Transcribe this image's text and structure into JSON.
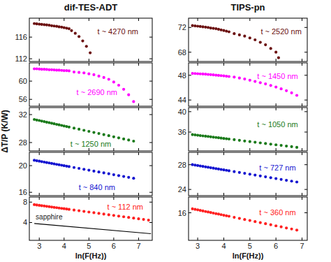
{
  "chart_data": [
    {
      "type": "scatter",
      "title": "dif-TES-ADT",
      "annotation": "t ~ 4270 nm",
      "xlim": [
        2.6,
        7.55
      ],
      "xticks": [
        3,
        4,
        5,
        6,
        7
      ],
      "ylim": [
        111.5,
        119.5
      ],
      "yticks": [
        112,
        116
      ],
      "tick_labels": "y",
      "series": [
        {
          "type": "scatter",
          "color": "#6b1010",
          "marker": "circle",
          "x": [
            2.8,
            2.9,
            3.0,
            3.1,
            3.2,
            3.3,
            3.4,
            3.5,
            3.6,
            3.7,
            3.8,
            3.9,
            4.0,
            4.1,
            4.2,
            4.3,
            4.45,
            4.6,
            4.75,
            4.9,
            5.05
          ],
          "values": [
            118.5,
            118.45,
            118.4,
            118.35,
            118.3,
            118.25,
            118.2,
            118.1,
            118.05,
            118.0,
            117.9,
            117.85,
            117.75,
            117.65,
            117.55,
            117.2,
            116.7,
            116.1,
            115.3,
            114.3,
            113.1
          ]
        }
      ]
    },
    {
      "type": "scatter",
      "annotation": "t ~ 2690 nm",
      "xlim": [
        2.6,
        7.55
      ],
      "xticks": [
        3,
        4,
        5,
        6,
        7
      ],
      "ylim": [
        54.5,
        64
      ],
      "yticks": [
        56,
        60
      ],
      "tick_labels": "y",
      "series": [
        {
          "type": "scatter",
          "color": "#ff00ff",
          "marker": "circle",
          "x": [
            2.8,
            2.9,
            3.0,
            3.1,
            3.2,
            3.3,
            3.4,
            3.5,
            3.6,
            3.7,
            3.8,
            3.9,
            4.0,
            4.1,
            4.2,
            4.4,
            4.6,
            4.8,
            5.0,
            5.2,
            5.4,
            5.6,
            5.8,
            6.0,
            6.2,
            6.4,
            6.6,
            6.8
          ],
          "values": [
            62.7,
            62.7,
            62.65,
            62.6,
            62.6,
            62.55,
            62.5,
            62.5,
            62.45,
            62.4,
            62.4,
            62.35,
            62.3,
            62.3,
            62.25,
            62.0,
            61.9,
            61.8,
            61.6,
            61.4,
            61.1,
            60.8,
            60.4,
            59.8,
            59.1,
            58.2,
            57.0,
            55.5
          ]
        }
      ]
    },
    {
      "type": "scatter",
      "annotation": "t ~ 1250 nm",
      "ylabel": "ΔT/P  (K/W)",
      "xlim": [
        2.6,
        7.55
      ],
      "xticks": [
        3,
        4,
        5,
        6,
        7
      ],
      "ylim": [
        26.8,
        33
      ],
      "yticks": [
        28,
        32
      ],
      "tick_labels": "y",
      "series": [
        {
          "type": "scatter",
          "color": "#1a7a1a",
          "marker": "circle",
          "x": [
            2.8,
            2.9,
            3.0,
            3.1,
            3.2,
            3.3,
            3.4,
            3.5,
            3.6,
            3.7,
            3.8,
            3.9,
            4.0,
            4.1,
            4.2,
            4.4,
            4.6,
            4.8,
            5.0,
            5.2,
            5.4,
            5.6,
            5.8,
            6.0,
            6.2,
            6.4,
            6.6,
            6.8
          ],
          "values": [
            31.3,
            31.22,
            31.15,
            31.07,
            30.99,
            30.91,
            30.84,
            30.76,
            30.68,
            30.6,
            30.53,
            30.45,
            30.37,
            30.29,
            30.22,
            30.06,
            29.91,
            29.75,
            29.6,
            29.44,
            29.29,
            29.13,
            28.98,
            28.82,
            28.67,
            28.51,
            28.36,
            28.2
          ]
        }
      ]
    },
    {
      "type": "scatter",
      "annotation": "t ~ 840 nm",
      "xlim": [
        2.6,
        7.55
      ],
      "xticks": [
        3,
        4,
        5,
        6,
        7
      ],
      "ylim": [
        15.5,
        22
      ],
      "yticks": [
        16,
        20
      ],
      "tick_labels": "y",
      "series": [
        {
          "type": "scatter",
          "color": "#1414d0",
          "marker": "circle",
          "x": [
            2.8,
            2.9,
            3.0,
            3.1,
            3.2,
            3.3,
            3.4,
            3.5,
            3.6,
            3.7,
            3.8,
            3.9,
            4.0,
            4.1,
            4.2,
            4.4,
            4.6,
            4.8,
            5.0,
            5.2,
            5.4,
            5.6,
            5.8,
            6.0,
            6.2,
            6.4,
            6.6,
            6.8
          ],
          "values": [
            20.8,
            20.73,
            20.67,
            20.6,
            20.53,
            20.46,
            20.4,
            20.33,
            20.26,
            20.19,
            20.13,
            20.06,
            19.99,
            19.92,
            19.86,
            19.72,
            19.59,
            19.45,
            19.32,
            19.18,
            19.05,
            18.91,
            18.78,
            18.64,
            18.51,
            18.37,
            18.24,
            18.1
          ]
        }
      ]
    },
    {
      "type": "scatter",
      "annotation": "t ~ 112 nm",
      "xlabel": "ln(F(Hz))",
      "xlim": [
        2.6,
        7.55
      ],
      "xticks": [
        3,
        4,
        5,
        6,
        7
      ],
      "ylim": [
        0.5,
        9
      ],
      "yticks": [
        4,
        8
      ],
      "series": [
        {
          "type": "scatter",
          "color": "#ff2020",
          "marker": "circle",
          "x": [
            2.8,
            2.9,
            3.0,
            3.1,
            3.2,
            3.3,
            3.4,
            3.5,
            3.6,
            3.7,
            3.8,
            3.9,
            4.0,
            4.1,
            4.2,
            4.4,
            4.6,
            4.8,
            5.0,
            5.2,
            5.4,
            5.6,
            5.8,
            6.0,
            6.2,
            6.4,
            6.6,
            6.8,
            7.0,
            7.2,
            7.4
          ],
          "values": [
            7.5,
            7.43,
            7.37,
            7.3,
            7.24,
            7.17,
            7.1,
            7.04,
            6.97,
            6.91,
            6.84,
            6.77,
            6.71,
            6.64,
            6.58,
            6.44,
            6.31,
            6.18,
            6.05,
            5.92,
            5.79,
            5.65,
            5.52,
            5.39,
            5.26,
            5.13,
            5.0,
            4.86,
            4.73,
            4.6,
            4.47
          ]
        },
        {
          "type": "line",
          "name": "sapphire",
          "color": "#000000",
          "line_style": "solid",
          "x": [
            2.8,
            7.5
          ],
          "values": [
            3.8,
            1.8
          ]
        }
      ]
    },
    {
      "type": "scatter",
      "title": "TIPS-pn",
      "annotation": "t ~ 2520 nm",
      "xlim": [
        2.65,
        7.2
      ],
      "xticks": [
        3,
        4,
        5,
        6,
        7
      ],
      "ylim": [
        66.5,
        73.5
      ],
      "yticks": [
        68,
        72
      ],
      "tick_labels": "y",
      "series": [
        {
          "type": "scatter",
          "color": "#6b1010",
          "marker": "circle",
          "x": [
            2.8,
            2.9,
            3.0,
            3.1,
            3.2,
            3.3,
            3.4,
            3.5,
            3.6,
            3.7,
            3.8,
            3.9,
            4.0,
            4.1,
            4.2,
            4.4,
            4.6,
            4.8,
            5.0,
            5.2,
            5.4,
            5.6,
            5.8,
            6.0,
            6.1
          ],
          "values": [
            72.3,
            72.25,
            72.2,
            72.15,
            72.1,
            72.05,
            72.0,
            71.9,
            71.85,
            71.8,
            71.7,
            71.6,
            71.5,
            71.4,
            71.3,
            71.0,
            70.8,
            70.6,
            70.3,
            70.0,
            69.6,
            69.2,
            68.6,
            68.0,
            67.1
          ]
        }
      ]
    },
    {
      "type": "scatter",
      "annotation": "t ~ 1450 nm",
      "xlim": [
        2.65,
        7.2
      ],
      "xticks": [
        3,
        4,
        5,
        6,
        7
      ],
      "ylim": [
        43,
        50
      ],
      "yticks": [
        44,
        48
      ],
      "tick_labels": "y",
      "series": [
        {
          "type": "scatter",
          "color": "#ff00ff",
          "marker": "circle",
          "x": [
            2.8,
            2.9,
            3.0,
            3.1,
            3.2,
            3.3,
            3.4,
            3.5,
            3.6,
            3.7,
            3.8,
            3.9,
            4.0,
            4.1,
            4.2,
            4.4,
            4.6,
            4.8,
            5.0,
            5.2,
            5.4,
            5.6,
            5.8,
            6.0,
            6.2,
            6.4,
            6.6,
            6.8
          ],
          "values": [
            48.3,
            48.28,
            48.25,
            48.22,
            48.2,
            48.17,
            48.13,
            48.1,
            48.06,
            48.02,
            47.98,
            47.94,
            47.9,
            47.85,
            47.8,
            47.7,
            47.55,
            47.4,
            47.2,
            47.0,
            46.8,
            46.6,
            46.35,
            46.1,
            45.8,
            45.5,
            45.15,
            44.75
          ]
        }
      ]
    },
    {
      "type": "scatter",
      "annotation": "t ~ 1050 nm",
      "xlim": [
        2.65,
        7.2
      ],
      "xticks": [
        3,
        4,
        5,
        6,
        7
      ],
      "ylim": [
        32.3,
        40.8
      ],
      "yticks": [
        36,
        40
      ],
      "tick_labels": "y",
      "series": [
        {
          "type": "scatter",
          "color": "#1a7a1a",
          "marker": "circle",
          "x": [
            2.8,
            2.9,
            3.0,
            3.1,
            3.2,
            3.3,
            3.4,
            3.5,
            3.6,
            3.7,
            3.8,
            3.9,
            4.0,
            4.1,
            4.2,
            4.4,
            4.6,
            4.8,
            5.0,
            5.2,
            5.4,
            5.6,
            5.8,
            6.0,
            6.2,
            6.4,
            6.6,
            6.8
          ],
          "values": [
            35.5,
            35.44,
            35.38,
            35.31,
            35.25,
            35.19,
            35.13,
            35.06,
            35.0,
            34.94,
            34.88,
            34.81,
            34.75,
            34.69,
            34.63,
            34.5,
            34.38,
            34.25,
            34.13,
            34.0,
            33.88,
            33.75,
            33.63,
            33.5,
            33.38,
            33.25,
            33.13,
            33.0
          ]
        }
      ]
    },
    {
      "type": "scatter",
      "annotation": "t ~ 727 nm",
      "xlim": [
        2.65,
        7.2
      ],
      "xticks": [
        3,
        4,
        5,
        6,
        7
      ],
      "ylim": [
        23,
        30
      ],
      "yticks": [
        24,
        28
      ],
      "tick_labels": "y",
      "series": [
        {
          "type": "scatter",
          "color": "#1414d0",
          "marker": "circle",
          "x": [
            2.8,
            2.9,
            3.0,
            3.1,
            3.2,
            3.3,
            3.4,
            3.5,
            3.6,
            3.7,
            3.8,
            3.9,
            4.0,
            4.1,
            4.2,
            4.4,
            4.6,
            4.8,
            5.0,
            5.2,
            5.4,
            5.6,
            5.8,
            6.0,
            6.2,
            6.4,
            6.6,
            6.8
          ],
          "values": [
            28.0,
            27.93,
            27.86,
            27.79,
            27.72,
            27.65,
            27.58,
            27.51,
            27.44,
            27.37,
            27.3,
            27.23,
            27.16,
            27.09,
            27.02,
            26.88,
            26.74,
            26.6,
            26.46,
            26.32,
            26.18,
            26.04,
            25.9,
            25.76,
            25.62,
            25.48,
            25.34,
            25.2
          ]
        }
      ]
    },
    {
      "type": "scatter",
      "annotation": "t ~ 360 nm",
      "xlabel": "ln(F(Hz))",
      "xlim": [
        2.65,
        7.2
      ],
      "xticks": [
        3,
        4,
        5,
        6,
        7
      ],
      "ylim": [
        12.5,
        18
      ],
      "yticks": [
        16
      ],
      "series": [
        {
          "type": "scatter",
          "color": "#ff2020",
          "marker": "circle",
          "x": [
            2.8,
            2.9,
            3.0,
            3.1,
            3.2,
            3.3,
            3.4,
            3.5,
            3.6,
            3.7,
            3.8,
            3.9,
            4.0,
            4.1,
            4.2,
            4.4,
            4.6,
            4.8,
            5.0,
            5.2,
            5.4,
            5.6,
            5.8,
            6.0,
            6.2,
            6.4,
            6.6,
            6.8
          ],
          "values": [
            16.5,
            16.43,
            16.37,
            16.3,
            16.23,
            16.16,
            16.1,
            16.03,
            15.96,
            15.89,
            15.83,
            15.76,
            15.69,
            15.62,
            15.56,
            15.42,
            15.29,
            15.15,
            15.02,
            14.88,
            14.75,
            14.61,
            14.48,
            14.34,
            14.21,
            14.07,
            13.94,
            13.8
          ]
        }
      ]
    }
  ]
}
